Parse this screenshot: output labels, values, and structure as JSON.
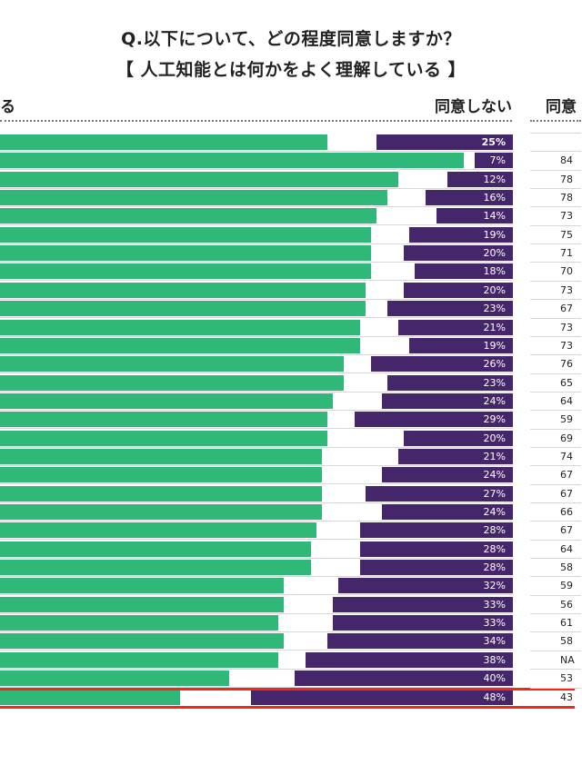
{
  "title": "Q.以下について、どの程度同意しますか？",
  "subtitle": "【 人工知能とは何かをよく理解している 】",
  "headers": {
    "agree": "る",
    "disagree": "同意しない",
    "right_column": "同意"
  },
  "colors": {
    "agree": "#2fb878",
    "disagree": "#45266b",
    "highlight": "#ee2a1b"
  },
  "chart_data": {
    "type": "bar",
    "orientation": "horizontal-diverging",
    "title": "Q.以下について、どの程度同意しますか？ 【 人工知能とは何かをよく理解している 】",
    "xlim": [
      0,
      100
    ],
    "series": [
      {
        "name": "同意する (estimated, labels cropped)",
        "values": [
          66,
          91,
          79,
          77,
          75,
          74,
          74,
          74,
          73,
          73,
          72,
          72,
          69,
          69,
          67,
          66,
          66,
          65,
          65,
          65,
          65,
          64,
          63,
          63,
          58,
          58,
          57,
          58,
          57,
          48,
          39
        ]
      },
      {
        "name": "同意しない",
        "values": [
          25,
          7,
          12,
          16,
          14,
          19,
          20,
          18,
          20,
          23,
          21,
          19,
          26,
          23,
          24,
          29,
          20,
          21,
          24,
          27,
          24,
          28,
          28,
          28,
          32,
          33,
          33,
          34,
          38,
          40,
          48
        ]
      }
    ],
    "disagree_labels": [
      "25%",
      "7%",
      "12%",
      "16%",
      "14%",
      "19%",
      "20%",
      "18%",
      "20%",
      "23%",
      "21%",
      "19%",
      "26%",
      "23%",
      "24%",
      "29%",
      "20%",
      "21%",
      "24%",
      "27%",
      "24%",
      "28%",
      "28%",
      "28%",
      "32%",
      "33%",
      "33%",
      "34%",
      "38%",
      "40%",
      "48%"
    ],
    "right_column_values": [
      "",
      "84",
      "78",
      "78",
      "73",
      "75",
      "71",
      "70",
      "73",
      "67",
      "73",
      "73",
      "76",
      "65",
      "64",
      "59",
      "69",
      "74",
      "67",
      "67",
      "66",
      "67",
      "64",
      "58",
      "59",
      "56",
      "61",
      "58",
      "NA",
      "53",
      "43"
    ],
    "highlighted_row": 31
  }
}
